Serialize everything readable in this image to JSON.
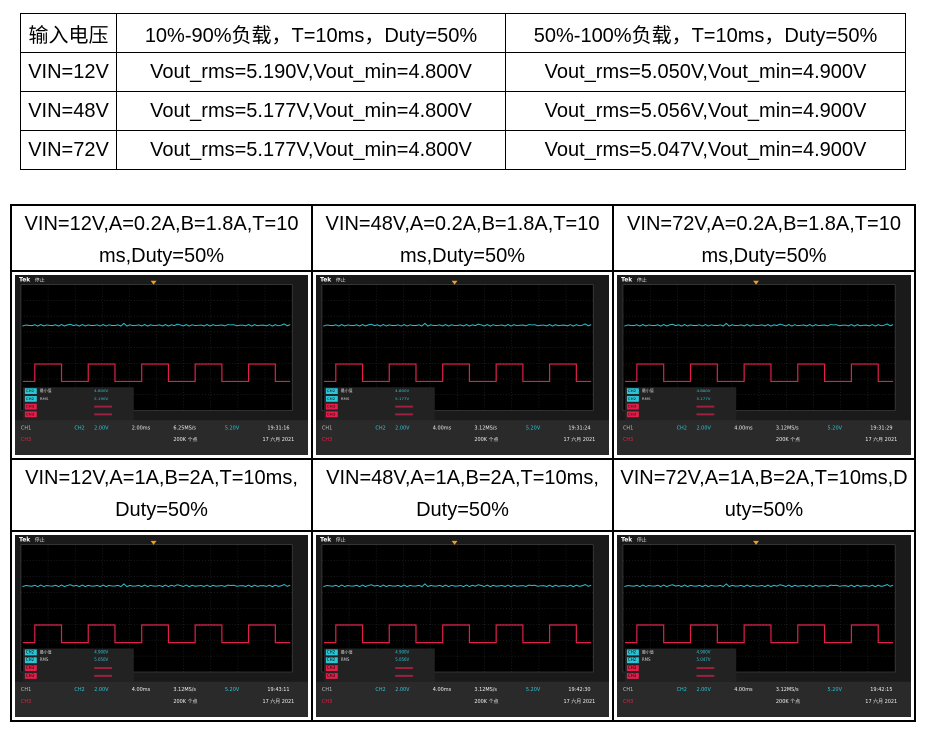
{
  "table": {
    "header": [
      "输入电压",
      "10%-90%负载，T=10ms，Duty=50%",
      "50%-100%负载，T=10ms，Duty=50%"
    ],
    "rows": [
      [
        "VIN=12V",
        "Vout_rms=5.190V,Vout_min=4.800V",
        "Vout_rms=5.050V,Vout_min=4.900V"
      ],
      [
        "VIN=48V",
        "Vout_rms=5.177V,Vout_min=4.800V",
        "Vout_rms=5.056V,Vout_min=4.900V"
      ],
      [
        "VIN=72V",
        "Vout_rms=5.177V,Vout_min=4.800V",
        "Vout_rms=5.047V,Vout_min=4.900V"
      ]
    ]
  },
  "scopes": [
    {
      "caption": "VIN=12V,A=0.2A,B=1.8A,T=10ms,Duty=50%",
      "timebase": "2.00ms",
      "sample_rate": "6.25MS/s",
      "time": "19:31:16",
      "min": "4.800V",
      "rms": "5.190V"
    },
    {
      "caption": "VIN=48V,A=0.2A,B=1.8A,T=10ms,Duty=50%",
      "timebase": "4.00ms",
      "sample_rate": "3.12MS/s",
      "time": "19:31:24",
      "min": "4.800V",
      "rms": "5.177V"
    },
    {
      "caption": "VIN=72V,A=0.2A,B=1.8A,T=10ms,Duty=50%",
      "timebase": "4.00ms",
      "sample_rate": "3.12MS/s",
      "time": "19:31:29",
      "min": "4.800V",
      "rms": "5.177V"
    },
    {
      "caption": "VIN=12V,A=1A,B=2A,T=10ms,Duty=50%",
      "timebase": "4.00ms",
      "sample_rate": "3.12MS/s",
      "time": "19:43:11",
      "min": "4.900V",
      "rms": "5.050V"
    },
    {
      "caption": "VIN=48V,A=1A,B=2A,T=10ms,Duty=50%",
      "timebase": "4.00ms",
      "sample_rate": "3.12MS/s",
      "time": "19:42:30",
      "min": "4.900V",
      "rms": "5.056V"
    },
    {
      "caption": "VIN=72V,A=1A,B=2A,T=10ms,Duty=50%",
      "timebase": "4.00ms",
      "sample_rate": "3.12MS/s",
      "time": "19:42:15",
      "min": "4.900V",
      "rms": "5.047V"
    }
  ],
  "scope_labels": {
    "brand": "Tek",
    "status": "停止",
    "ch1": "CH1",
    "ch2": "CH2",
    "ch3": "CH3",
    "volts": "2.00V",
    "trigger": "5.20V",
    "points": "200K 个点",
    "date": "17 六月 2021",
    "min_label": "最小值",
    "rms_label": "RMS"
  }
}
